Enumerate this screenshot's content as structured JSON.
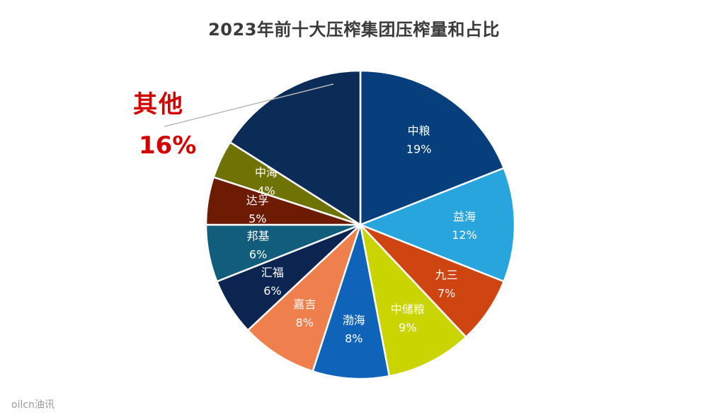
{
  "chart_data": {
    "type": "pie",
    "title": "2023年前十大压榨集团压榨量和占比",
    "start": "12 o'clock, clockwise",
    "slices": [
      {
        "name": "中粮",
        "pct_label": "19%",
        "value": 19,
        "color": "#063f7c"
      },
      {
        "name": "益海",
        "pct_label": "12%",
        "value": 12,
        "color": "#29a5de"
      },
      {
        "name": "九三",
        "pct_label": "7%",
        "value": 7,
        "color": "#cf4511"
      },
      {
        "name": "中储粮",
        "pct_label": "9%",
        "value": 9,
        "color": "#c9d400"
      },
      {
        "name": "渤海",
        "pct_label": "8%",
        "value": 8,
        "color": "#0f63b8"
      },
      {
        "name": "嘉吉",
        "pct_label": "8%",
        "value": 8,
        "color": "#f07f4e"
      },
      {
        "name": "汇福",
        "pct_label": "6%",
        "value": 6,
        "color": "#0b2450"
      },
      {
        "name": "邦基",
        "pct_label": "6%",
        "value": 6,
        "color": "#125d7c"
      },
      {
        "name": "达孚",
        "pct_label": "5%",
        "value": 5,
        "color": "#6e1b04"
      },
      {
        "name": "中海",
        "pct_label": "4%",
        "value": 4,
        "color": "#6f7306"
      },
      {
        "name": "其他",
        "pct_label": "16%",
        "value": 16,
        "color": "#0c2c58"
      }
    ],
    "callout": {
      "name": "其他",
      "pct_label": "16%",
      "color": "#d40000"
    }
  },
  "watermark": "oilcn油讯"
}
